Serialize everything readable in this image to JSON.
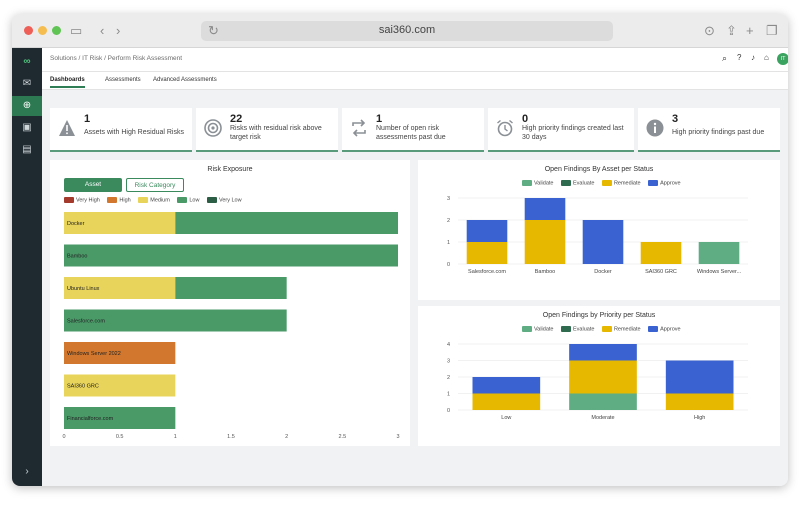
{
  "browser": {
    "url": "sai360.com"
  },
  "breadcrumb": "Solutions / IT Risk / Perform Risk Assessment",
  "user_initials": "IT",
  "tabs": [
    "Dashboards",
    "Assessments",
    "Advanced Assessments"
  ],
  "kpis": [
    {
      "value": "1",
      "label": "Assets with High Residual Risks",
      "icon": "warning-icon"
    },
    {
      "value": "22",
      "label": "Risks with residual risk above target risk",
      "icon": "target-icon"
    },
    {
      "value": "1",
      "label": "Number of open risk assessments past due",
      "icon": "repeat-icon"
    },
    {
      "value": "0",
      "label": "High priority findings created last 30 days",
      "icon": "alarm-clock-icon"
    },
    {
      "value": "3",
      "label": "High priority findings past due",
      "icon": "info-icon"
    }
  ],
  "risk_exposure": {
    "title": "Risk Exposure",
    "toggle": [
      "Asset",
      "Risk Category"
    ],
    "legend": [
      {
        "name": "Very High",
        "color": "#a33a2b"
      },
      {
        "name": "High",
        "color": "#d2782e"
      },
      {
        "name": "Medium",
        "color": "#e8d45a"
      },
      {
        "name": "Low",
        "color": "#4a9a68"
      },
      {
        "name": "Very Low",
        "color": "#2c5e45"
      }
    ]
  },
  "chart_data": [
    {
      "type": "bar",
      "orientation": "horizontal",
      "stacked": true,
      "title": "Risk Exposure",
      "categories": [
        "Docker",
        "Bamboo",
        "Ubuntu Linux",
        "Salesforce.com",
        "Windows Server 2022",
        "SAI360 GRC",
        "Financialforce.com"
      ],
      "series": [
        {
          "name": "High",
          "color": "#d2782e",
          "values": [
            0,
            0,
            0,
            0,
            1,
            0,
            0
          ]
        },
        {
          "name": "Medium",
          "color": "#e8d45a",
          "values": [
            1,
            0,
            1,
            0,
            0,
            1,
            0
          ]
        },
        {
          "name": "Low",
          "color": "#4a9a68",
          "values": [
            2,
            3,
            1,
            2,
            0,
            0,
            1
          ]
        }
      ],
      "xlim": [
        0,
        3
      ],
      "xticks": [
        "0",
        "0.5",
        "1",
        "1.5",
        "2",
        "2.5",
        "3"
      ]
    },
    {
      "type": "bar",
      "stacked": true,
      "title": "Open Findings By Asset per Status",
      "categories": [
        "Salesforce.com",
        "Bamboo",
        "Docker",
        "SAI360 GRC",
        "Windows Server..."
      ],
      "series": [
        {
          "name": "Validate",
          "color": "#5fae83",
          "values": [
            0,
            0,
            0,
            0,
            1
          ]
        },
        {
          "name": "Evaluate",
          "color": "#2f6b4f",
          "values": [
            0,
            0,
            0,
            0,
            0
          ]
        },
        {
          "name": "Remediate",
          "color": "#e6b800",
          "values": [
            1,
            2,
            0,
            1,
            0
          ]
        },
        {
          "name": "Approve",
          "color": "#3a62d0",
          "values": [
            1,
            1,
            2,
            0,
            0
          ]
        }
      ],
      "ylim": [
        0,
        3
      ],
      "yticks": [
        "0",
        "1",
        "2",
        "3"
      ]
    },
    {
      "type": "bar",
      "stacked": true,
      "title": "Open Findings by Priority per Status",
      "categories": [
        "Low",
        "Moderate",
        "High"
      ],
      "series": [
        {
          "name": "Validate",
          "color": "#5fae83",
          "values": [
            0,
            1,
            0
          ]
        },
        {
          "name": "Evaluate",
          "color": "#2f6b4f",
          "values": [
            0,
            0,
            0
          ]
        },
        {
          "name": "Remediate",
          "color": "#e6b800",
          "values": [
            1,
            2,
            1
          ]
        },
        {
          "name": "Approve",
          "color": "#3a62d0",
          "values": [
            1,
            1,
            2
          ]
        }
      ],
      "ylim": [
        0,
        4
      ],
      "yticks": [
        "0",
        "1",
        "2",
        "3",
        "4"
      ]
    }
  ]
}
